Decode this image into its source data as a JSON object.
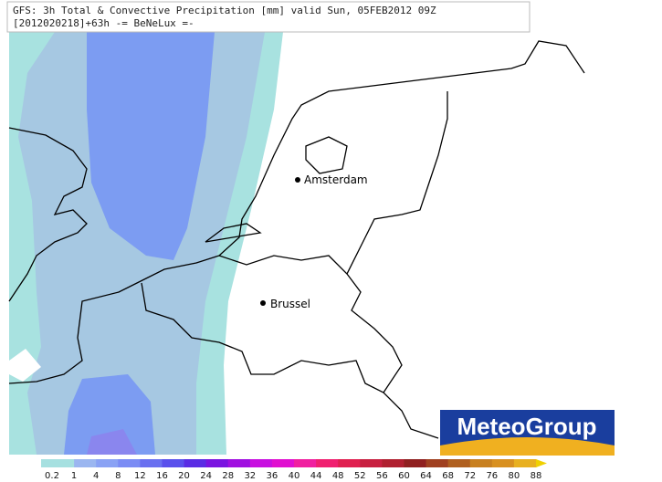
{
  "header": {
    "line1": "GFS: 3h Total & Convective Precipitation [mm] valid Sun, 05FEB2012 09Z",
    "line2": "[2012020218]+63h -= BeNeLux =-"
  },
  "cities": [
    {
      "label": "Amsterdam"
    },
    {
      "label": "Brussel"
    }
  ],
  "logo": {
    "text": "MeteoGroup"
  },
  "legend": {
    "ticks": [
      0.2,
      1,
      4,
      8,
      12,
      16,
      20,
      24,
      28,
      32,
      36,
      40,
      44,
      48,
      52,
      56,
      60,
      64,
      68,
      72,
      76,
      80,
      88
    ],
    "colors": [
      "#a6e0e0",
      "#9bb6f0",
      "#8aa2f4",
      "#7b8cf4",
      "#6a70f0",
      "#5a50ec",
      "#5a2ce4",
      "#7a14e0",
      "#a010e0",
      "#c810e0",
      "#e010d0",
      "#f020a0",
      "#f02070",
      "#e02050",
      "#c82040",
      "#b02030",
      "#902020",
      "#a04020",
      "#b06020",
      "#c88020",
      "#d89020",
      "#e8b020",
      "#f0d000"
    ]
  }
}
